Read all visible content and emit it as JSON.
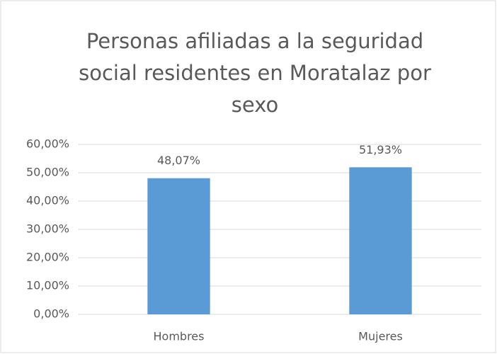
{
  "chart_data": {
    "type": "bar",
    "title": "Personas afiliadas a la seguridad social residentes en Moratalaz por sexo",
    "categories": [
      "Hombres",
      "Mujeres"
    ],
    "values": [
      48.07,
      51.93
    ],
    "value_labels": [
      "48,07%",
      "51,93%"
    ],
    "color": "#5b9bd5",
    "ylim": [
      0,
      60
    ],
    "yticks": [
      {
        "value": 0,
        "label": "0,00%"
      },
      {
        "value": 10,
        "label": "10,00%"
      },
      {
        "value": 20,
        "label": "20,00%"
      },
      {
        "value": 30,
        "label": "30,00%"
      },
      {
        "value": 40,
        "label": "40,00%"
      },
      {
        "value": 50,
        "label": "50,00%"
      },
      {
        "value": 60,
        "label": "60,00%"
      }
    ],
    "grid": true
  }
}
